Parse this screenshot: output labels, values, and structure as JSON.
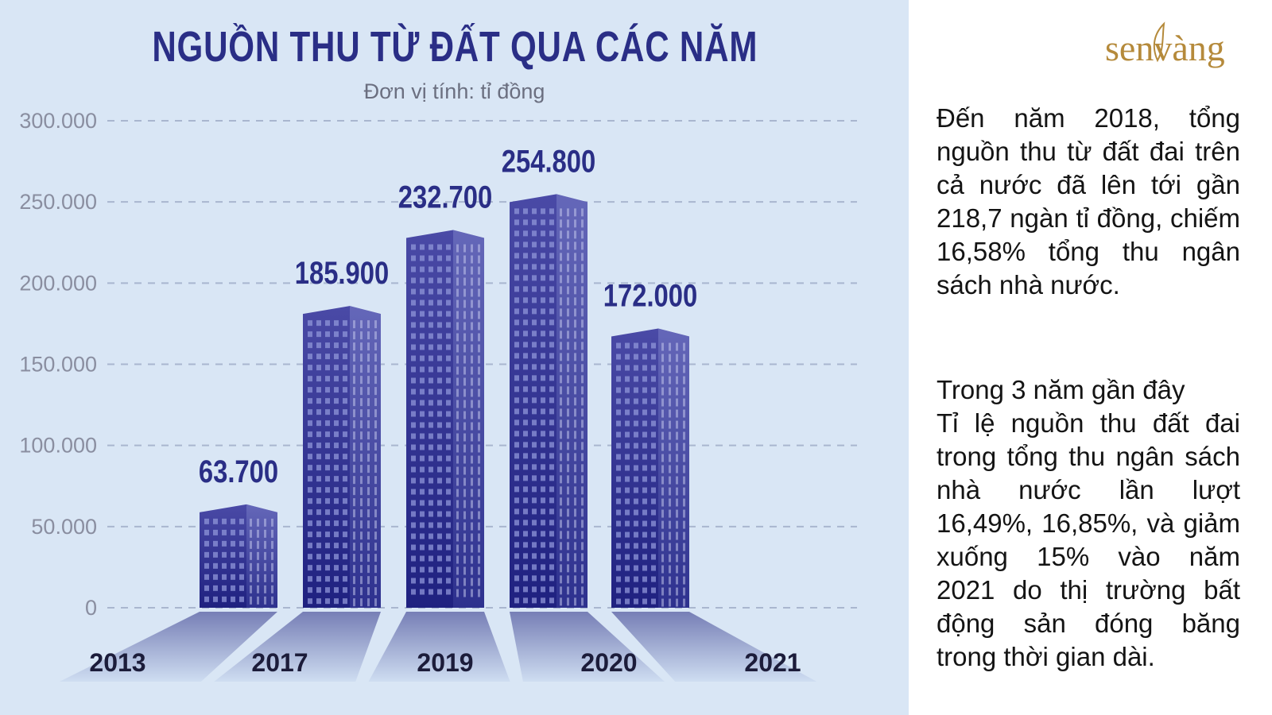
{
  "chart_data": {
    "type": "bar",
    "title": "NGUỒN THU TỪ ĐẤT QUA CÁC NĂM",
    "subtitle": "Đơn vị tính: tỉ đồng",
    "categories": [
      "2013",
      "2017",
      "2019",
      "2020",
      "2021"
    ],
    "values": [
      63700,
      185900,
      232700,
      254800,
      172000
    ],
    "value_labels": [
      "63.700",
      "185.900",
      "232.700",
      "254.800",
      "172.000"
    ],
    "ylim": [
      0,
      300000
    ],
    "yticks": [
      0,
      50000,
      100000,
      150000,
      200000,
      250000,
      300000
    ],
    "ytick_labels": [
      "0",
      "50.000",
      "100.000",
      "150.000",
      "200.000",
      "250.000",
      "300.000"
    ],
    "grid": true,
    "bar_style": "building",
    "colors": {
      "bar": "#2f2f8f",
      "bar_light": "#5a5fb8",
      "background": "#d9e6f5",
      "title": "#2a2e86"
    }
  },
  "logo": {
    "text": "senvàng",
    "color": "#b58a3b"
  },
  "side_text": {
    "para1": "Đến năm 2018, tổng nguồn thu từ đất đai trên cả nước đã lên tới gần 218,7 ngàn tỉ đồng, chiếm 16,58% tổng thu ngân sách nhà nước.",
    "para2_heading": "Trong 3 năm gần đây",
    "para2": "Tỉ lệ nguồn thu đất đai trong tổng thu ngân sách nhà nước lần lượt 16,49%, 16,85%, và giảm xuống 15% vào năm 2021 do thị trường bất động sản đóng băng trong thời gian dài."
  }
}
